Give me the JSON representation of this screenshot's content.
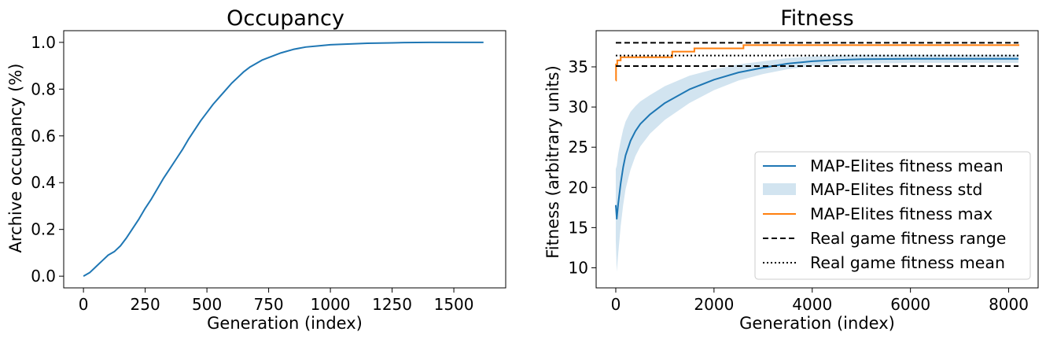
{
  "chart_data": [
    {
      "type": "line",
      "title": "Occupancy",
      "xlabel": "Generation (index)",
      "ylabel": "Archive occupancy (%)",
      "xlim": [
        -80,
        1710
      ],
      "ylim": [
        -0.05,
        1.05
      ],
      "xticks": [
        "0",
        "250",
        "500",
        "750",
        "1000",
        "1250",
        "1500"
      ],
      "yticks": [
        "0.0",
        "0.2",
        "0.4",
        "0.6",
        "0.8",
        "1.0"
      ],
      "grid": false,
      "series": [
        {
          "color": "#1f77b4",
          "x": [
            0,
            25,
            50,
            75,
            100,
            125,
            150,
            175,
            200,
            225,
            250,
            275,
            300,
            325,
            350,
            375,
            400,
            425,
            450,
            475,
            500,
            525,
            550,
            575,
            600,
            625,
            650,
            675,
            700,
            725,
            750,
            775,
            800,
            850,
            900,
            950,
            1000,
            1050,
            1100,
            1150,
            1200,
            1250,
            1300,
            1400,
            1500,
            1620
          ],
          "values": [
            0.0,
            0.015,
            0.04,
            0.065,
            0.09,
            0.105,
            0.13,
            0.165,
            0.205,
            0.245,
            0.29,
            0.33,
            0.375,
            0.42,
            0.46,
            0.5,
            0.54,
            0.585,
            0.625,
            0.665,
            0.7,
            0.735,
            0.765,
            0.795,
            0.825,
            0.85,
            0.875,
            0.895,
            0.91,
            0.925,
            0.935,
            0.945,
            0.955,
            0.97,
            0.98,
            0.985,
            0.99,
            0.992,
            0.994,
            0.996,
            0.997,
            0.998,
            0.999,
            1.0,
            1.0,
            1.0
          ]
        }
      ]
    },
    {
      "type": "line",
      "title": "Fitness",
      "xlabel": "Generation (index)",
      "ylabel": "Fitness (arbitrary units)",
      "xlim": [
        -400,
        8600
      ],
      "ylim": [
        7.5,
        39.5
      ],
      "xticks": [
        "0",
        "2000",
        "4000",
        "6000",
        "8000"
      ],
      "yticks": [
        "10",
        "15",
        "20",
        "25",
        "30",
        "35"
      ],
      "grid": false,
      "legend_position": "lower-right",
      "series": [
        {
          "name": "MAP-Elites fitness mean",
          "kind": "line",
          "color": "#1f77b4",
          "x": [
            0,
            20,
            50,
            100,
            150,
            200,
            300,
            400,
            500,
            700,
            1000,
            1500,
            2000,
            2500,
            3000,
            3500,
            4000,
            4500,
            5000,
            6000,
            7000,
            8200
          ],
          "values": [
            17.8,
            16.1,
            18.0,
            20.5,
            22.5,
            24.0,
            25.8,
            27.0,
            27.9,
            29.1,
            30.5,
            32.2,
            33.4,
            34.3,
            34.9,
            35.4,
            35.7,
            35.85,
            35.95,
            36.0,
            36.0,
            36.0
          ]
        },
        {
          "name": "MAP-Elites fitness std",
          "kind": "band",
          "color": "#1f77b4",
          "opacity": 0.2,
          "x": [
            0,
            20,
            50,
            100,
            150,
            200,
            300,
            400,
            500,
            700,
            1000,
            1500,
            2000,
            2500,
            3000,
            3500,
            4000,
            4500,
            5000,
            6000,
            7000,
            8200
          ],
          "lower": [
            13.3,
            9.5,
            11.8,
            15.2,
            17.8,
            19.8,
            22.2,
            23.9,
            25.1,
            26.7,
            28.4,
            30.5,
            32.1,
            33.3,
            34.1,
            34.7,
            35.1,
            35.3,
            35.4,
            35.5,
            35.5,
            35.5
          ],
          "upper": [
            22.3,
            22.7,
            24.2,
            25.8,
            27.2,
            28.2,
            29.4,
            30.1,
            30.7,
            31.5,
            32.6,
            33.9,
            34.7,
            35.3,
            35.7,
            36.1,
            36.3,
            36.4,
            36.5,
            36.5,
            36.5,
            36.5
          ]
        },
        {
          "name": "MAP-Elites fitness max",
          "kind": "step",
          "color": "#ff7f0e",
          "x": [
            0,
            5,
            30,
            100,
            600,
            1100,
            1150,
            1550,
            1600,
            2550,
            2600,
            8200
          ],
          "values": [
            33.3,
            35.3,
            35.8,
            36.2,
            36.2,
            36.2,
            36.9,
            36.9,
            37.3,
            37.3,
            37.7,
            37.8
          ]
        },
        {
          "name": "Real game fitness range",
          "kind": "hline-dashed",
          "color": "#000000",
          "levels": [
            35.1,
            38.0
          ]
        },
        {
          "name": "Real game fitness mean",
          "kind": "hline-dotted",
          "color": "#000000",
          "levels": [
            36.4
          ]
        }
      ]
    }
  ]
}
